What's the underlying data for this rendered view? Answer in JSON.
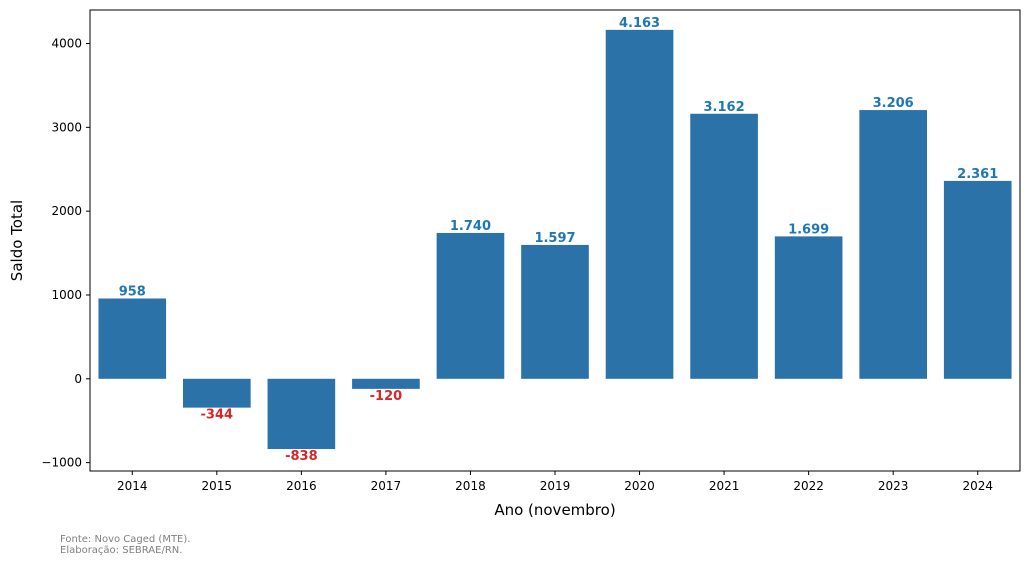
{
  "chart_data": {
    "type": "bar",
    "categories": [
      "2014",
      "2015",
      "2016",
      "2017",
      "2018",
      "2019",
      "2020",
      "2021",
      "2022",
      "2023",
      "2024"
    ],
    "values": [
      958,
      -344,
      -838,
      -120,
      1740,
      1597,
      4163,
      3162,
      1699,
      3206,
      2361
    ],
    "data_labels": [
      "958",
      "-344",
      "-838",
      "-120",
      "1.740",
      "1.597",
      "4.163",
      "3.162",
      "1.699",
      "3.206",
      "2.361"
    ],
    "xlabel": "Ano (novembro)",
    "ylabel": "Saldo Total",
    "ylim": [
      -1100,
      4400
    ],
    "yticks": [
      -1000,
      0,
      1000,
      2000,
      3000,
      4000
    ],
    "ytick_labels": [
      "−1000",
      "0",
      "1000",
      "2000",
      "3000",
      "4000"
    ],
    "grid": false,
    "colors": {
      "bar": "#2b72a8",
      "positive_label": "#1f77b4",
      "negative_label": "#d62728"
    }
  },
  "footer": {
    "source_line1": "Fonte: Novo Caged (MTE).",
    "source_line2": "Elaboração: SEBRAE/RN."
  }
}
